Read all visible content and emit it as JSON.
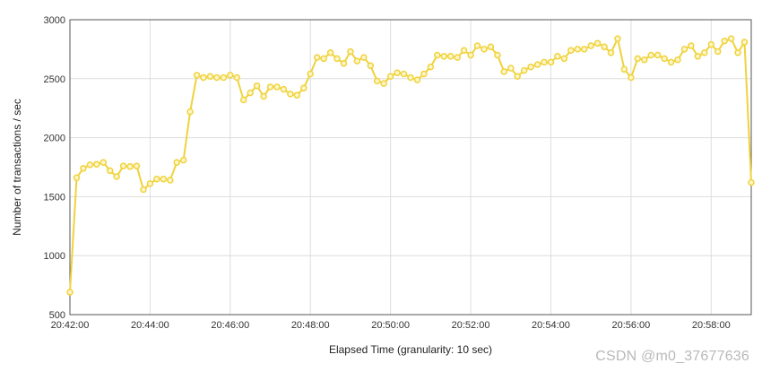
{
  "chart_data": {
    "type": "line",
    "title": "",
    "xlabel": "Elapsed Time (granularity: 10 sec)",
    "ylabel": "Number of transactions / sec",
    "xlim_minutes": [
      0,
      17.0
    ],
    "ylim": [
      500,
      3000
    ],
    "yticks": [
      500,
      1000,
      1500,
      2000,
      2500,
      3000
    ],
    "xticks": [
      "20:42:00",
      "20:44:00",
      "20:46:00",
      "20:48:00",
      "20:50:00",
      "20:52:00",
      "20:54:00",
      "20:56:00",
      "20:58:00"
    ],
    "grid": true,
    "legend": "none",
    "series": [
      {
        "color": "#f0d23c",
        "x": [
          "20:42:00",
          "20:42:10",
          "20:42:20",
          "20:42:30",
          "20:42:40",
          "20:42:50",
          "20:43:00",
          "20:43:10",
          "20:43:20",
          "20:43:30",
          "20:43:40",
          "20:43:50",
          "20:44:00",
          "20:44:10",
          "20:44:20",
          "20:44:30",
          "20:44:40",
          "20:44:50",
          "20:45:00",
          "20:45:10",
          "20:45:20",
          "20:45:30",
          "20:45:40",
          "20:45:50",
          "20:46:00",
          "20:46:10",
          "20:46:20",
          "20:46:30",
          "20:46:40",
          "20:46:50",
          "20:47:00",
          "20:47:10",
          "20:47:20",
          "20:47:30",
          "20:47:40",
          "20:47:50",
          "20:48:00",
          "20:48:10",
          "20:48:20",
          "20:48:30",
          "20:48:40",
          "20:48:50",
          "20:49:00",
          "20:49:10",
          "20:49:20",
          "20:49:30",
          "20:49:40",
          "20:49:50",
          "20:50:00",
          "20:50:10",
          "20:50:20",
          "20:50:30",
          "20:50:40",
          "20:50:50",
          "20:51:00",
          "20:51:10",
          "20:51:20",
          "20:51:30",
          "20:51:40",
          "20:51:50",
          "20:52:00",
          "20:52:10",
          "20:52:20",
          "20:52:30",
          "20:52:40",
          "20:52:50",
          "20:53:00",
          "20:53:10",
          "20:53:20",
          "20:53:30",
          "20:53:40",
          "20:53:50",
          "20:54:00",
          "20:54:10",
          "20:54:20",
          "20:54:30",
          "20:54:40",
          "20:54:50",
          "20:55:00",
          "20:55:10",
          "20:55:20",
          "20:55:30",
          "20:55:40",
          "20:55:50",
          "20:56:00",
          "20:56:10",
          "20:56:20",
          "20:56:30",
          "20:56:40",
          "20:56:50",
          "20:57:00",
          "20:57:10",
          "20:57:20",
          "20:57:30",
          "20:57:40",
          "20:57:50",
          "20:58:00",
          "20:58:10",
          "20:58:20",
          "20:58:30",
          "20:58:40",
          "20:58:50",
          "20:59:00"
        ],
        "values": [
          690,
          1660,
          1740,
          1770,
          1775,
          1790,
          1720,
          1670,
          1760,
          1755,
          1760,
          1560,
          1610,
          1650,
          1650,
          1640,
          1790,
          1810,
          2220,
          2530,
          2510,
          2520,
          2510,
          2510,
          2530,
          2510,
          2320,
          2380,
          2440,
          2350,
          2430,
          2430,
          2410,
          2370,
          2360,
          2420,
          2540,
          2680,
          2670,
          2720,
          2670,
          2630,
          2730,
          2650,
          2680,
          2610,
          2480,
          2460,
          2520,
          2550,
          2540,
          2510,
          2490,
          2540,
          2600,
          2700,
          2690,
          2690,
          2680,
          2740,
          2700,
          2780,
          2750,
          2770,
          2700,
          2560,
          2590,
          2520,
          2570,
          2600,
          2620,
          2640,
          2640,
          2690,
          2670,
          2740,
          2750,
          2750,
          2780,
          2800,
          2770,
          2720,
          2840,
          2580,
          2510,
          2670,
          2660,
          2700,
          2700,
          2670,
          2640,
          2660,
          2750,
          2780,
          2690,
          2720,
          2790,
          2730,
          2820,
          2840,
          2720,
          2810,
          1620
        ]
      }
    ]
  },
  "watermark": "CSDN @m0_37677636"
}
